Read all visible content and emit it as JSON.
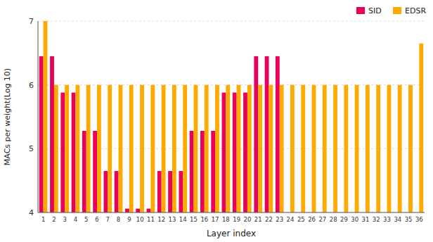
{
  "chart_data": {
    "type": "bar",
    "x_label": "Layer index",
    "y_label": "MACs per weight(Log 10)",
    "categories": [
      "1",
      "2",
      "3",
      "4",
      "5",
      "6",
      "7",
      "8",
      "9",
      "10",
      "11",
      "12",
      "13",
      "14",
      "15",
      "16",
      "17",
      "18",
      "19",
      "20",
      "21",
      "22",
      "23",
      "24",
      "25",
      "26",
      "27",
      "28",
      "29",
      "30",
      "31",
      "32",
      "33",
      "34",
      "35",
      "36"
    ],
    "series": [
      {
        "name": "SID",
        "color": "#e8005a",
        "values": [
          6.45,
          6.45,
          5.88,
          5.88,
          5.28,
          5.28,
          4.65,
          4.65,
          4.06,
          4.06,
          4.06,
          4.65,
          4.65,
          4.65,
          5.28,
          5.28,
          5.28,
          5.88,
          5.88,
          5.88,
          6.45,
          6.45,
          6.45,
          null,
          null,
          null,
          null,
          null,
          null,
          null,
          null,
          null,
          null,
          null,
          null,
          null
        ]
      },
      {
        "name": "EDSR",
        "color": "#ffaa00",
        "values": [
          7.0,
          6.0,
          6.0,
          6.0,
          6.0,
          6.0,
          6.0,
          6.0,
          6.0,
          6.0,
          6.0,
          6.0,
          6.0,
          6.0,
          6.0,
          6.0,
          6.0,
          6.0,
          6.0,
          6.0,
          6.0,
          6.0,
          6.0,
          6.0,
          6.0,
          6.0,
          6.0,
          6.0,
          6.0,
          6.0,
          6.0,
          6.0,
          6.0,
          6.0,
          6.0,
          6.65
        ]
      }
    ],
    "ylim": [
      4,
      7
    ],
    "yticks": [
      4,
      5,
      6,
      7
    ],
    "grid": true,
    "legend": "top right"
  }
}
